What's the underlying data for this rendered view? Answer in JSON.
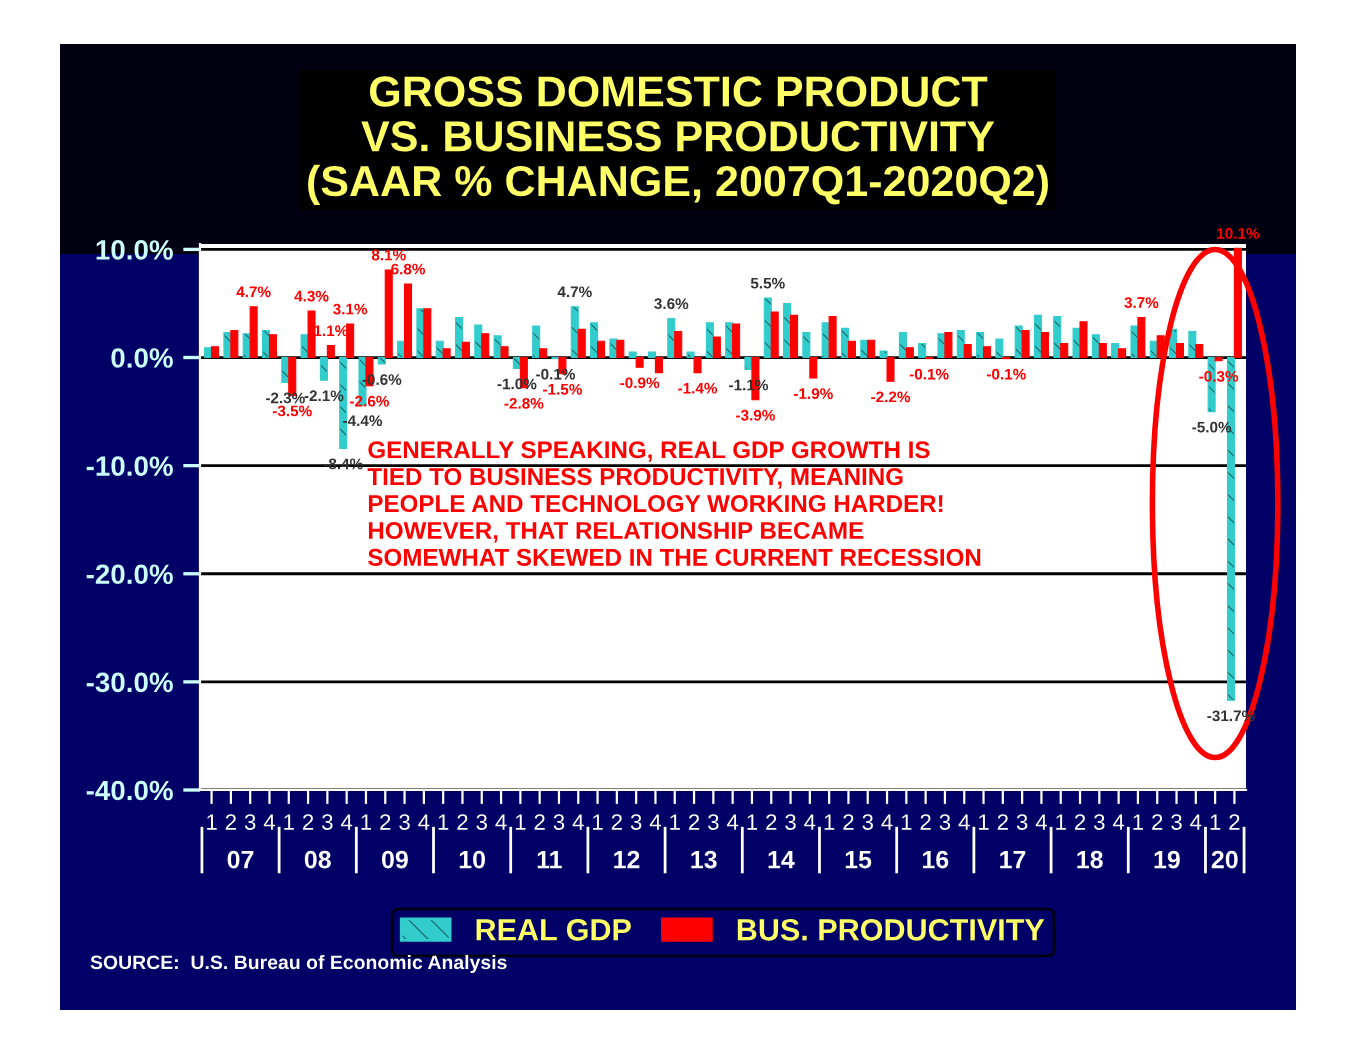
{
  "chart_data": {
    "type": "bar",
    "title": "GROSS DOMESTIC PRODUCT\nVS. BUSINESS PRODUCTIVITY\n(SAAR % CHANGE, 2007Q1-2020Q2)",
    "categories": [
      "1",
      "2",
      "3",
      "4",
      "1",
      "2",
      "3",
      "4",
      "1",
      "2",
      "3",
      "4",
      "1",
      "2",
      "3",
      "4",
      "1",
      "2",
      "3",
      "4",
      "1",
      "2",
      "3",
      "4",
      "1",
      "2",
      "3",
      "4",
      "1",
      "2",
      "3",
      "4",
      "1",
      "2",
      "3",
      "4",
      "1",
      "2",
      "3",
      "4",
      "1",
      "2",
      "3",
      "4",
      "1",
      "2",
      "3",
      "4",
      "1",
      "2",
      "3",
      "4",
      "1",
      "2"
    ],
    "series": [
      {
        "name": "REAL GDP",
        "color": "#33cccc",
        "values": [
          0.9,
          2.3,
          2.2,
          2.5,
          -2.3,
          2.1,
          -2.1,
          -8.4,
          -4.4,
          -0.6,
          1.5,
          4.5,
          1.5,
          3.7,
          3.0,
          2.0,
          -1.0,
          2.9,
          -0.1,
          4.7,
          3.2,
          1.7,
          0.5,
          0.5,
          3.6,
          0.5,
          3.2,
          3.2,
          -1.1,
          5.5,
          5.0,
          2.3,
          3.2,
          2.7,
          1.6,
          0.6,
          2.3,
          1.3,
          2.2,
          2.5,
          2.3,
          1.7,
          2.9,
          3.9,
          3.8,
          2.7,
          2.1,
          1.3,
          2.9,
          1.5,
          2.6,
          2.4,
          -5.0,
          -31.7
        ],
        "value_labels": [
          null,
          null,
          null,
          null,
          "-2.3%",
          null,
          "-2.1%",
          "-8.4%",
          "-4.4%",
          "-0.6%",
          null,
          null,
          null,
          null,
          null,
          null,
          "-1.0%",
          null,
          "-0.1%",
          "4.7%",
          null,
          null,
          null,
          null,
          "3.6%",
          null,
          null,
          null,
          "-1.1%",
          "5.5%",
          null,
          null,
          null,
          null,
          null,
          null,
          null,
          null,
          null,
          null,
          null,
          null,
          null,
          null,
          null,
          null,
          null,
          null,
          null,
          null,
          null,
          null,
          "-5.0%",
          "-31.7%"
        ]
      },
      {
        "name": "BUS. PRODUCTIVITY",
        "color": "#ff0000",
        "values": [
          1.0,
          2.5,
          4.7,
          2.1,
          -3.5,
          4.3,
          1.1,
          3.1,
          -2.6,
          8.1,
          6.8,
          4.5,
          0.8,
          1.4,
          2.2,
          1.0,
          -2.8,
          0.8,
          -1.5,
          2.6,
          1.5,
          1.6,
          -0.9,
          -1.4,
          2.4,
          -1.4,
          1.9,
          3.1,
          -3.9,
          4.2,
          3.9,
          -1.9,
          3.8,
          1.5,
          1.6,
          -2.2,
          0.9,
          -0.1,
          2.3,
          1.2,
          1.0,
          -0.1,
          2.5,
          2.3,
          1.3,
          3.3,
          1.3,
          0.8,
          3.7,
          2.0,
          1.3,
          1.2,
          -0.3,
          10.1
        ],
        "value_labels": [
          null,
          null,
          "4.7%",
          null,
          "-3.5%",
          "4.3%",
          "1.1%",
          "3.1%",
          "-2.6%",
          "8.1%",
          "6.8%",
          null,
          null,
          null,
          null,
          null,
          "-2.8%",
          null,
          "-1.5%",
          null,
          null,
          null,
          "-0.9%",
          null,
          null,
          "-1.4%",
          null,
          null,
          "-3.9%",
          null,
          null,
          "-1.9%",
          null,
          null,
          null,
          "-2.2%",
          null,
          "-0.1%",
          null,
          null,
          null,
          "-0.1%",
          null,
          null,
          null,
          null,
          null,
          null,
          "3.7%",
          null,
          null,
          null,
          "-0.3%",
          "10.1%"
        ]
      }
    ],
    "ylim": [
      -40,
      10.5
    ],
    "yticks": [
      {
        "value": 10,
        "label": "10.0%"
      },
      {
        "value": 0,
        "label": "0.0%"
      },
      {
        "value": -10,
        "label": "-10.0%"
      },
      {
        "value": -20,
        "label": "-20.0%"
      },
      {
        "value": -30,
        "label": "-30.0%"
      },
      {
        "value": -40,
        "label": "-40.0%"
      }
    ],
    "grid": "y",
    "legend": "bottom",
    "annotations": [
      "07",
      "08",
      "09",
      "10",
      "11",
      "12",
      "13",
      "14",
      "15",
      "16",
      "17",
      "18",
      "19",
      "20",
      "GENERALLY SPEAKING, REAL GDP GROWTH IS\nTIED TO BUSINESS PRODUCTIVITY, MEANING\nPEOPLE AND TECHNOLOGY WORKING HARDER!\nHOWEVER, THAT RELATIONSHIP BECAME\nSOMEWHAT SKEWED IN THE CURRENT RECESSION",
      "SOURCE:  U.S. Bureau of Economic Analysis"
    ]
  }
}
